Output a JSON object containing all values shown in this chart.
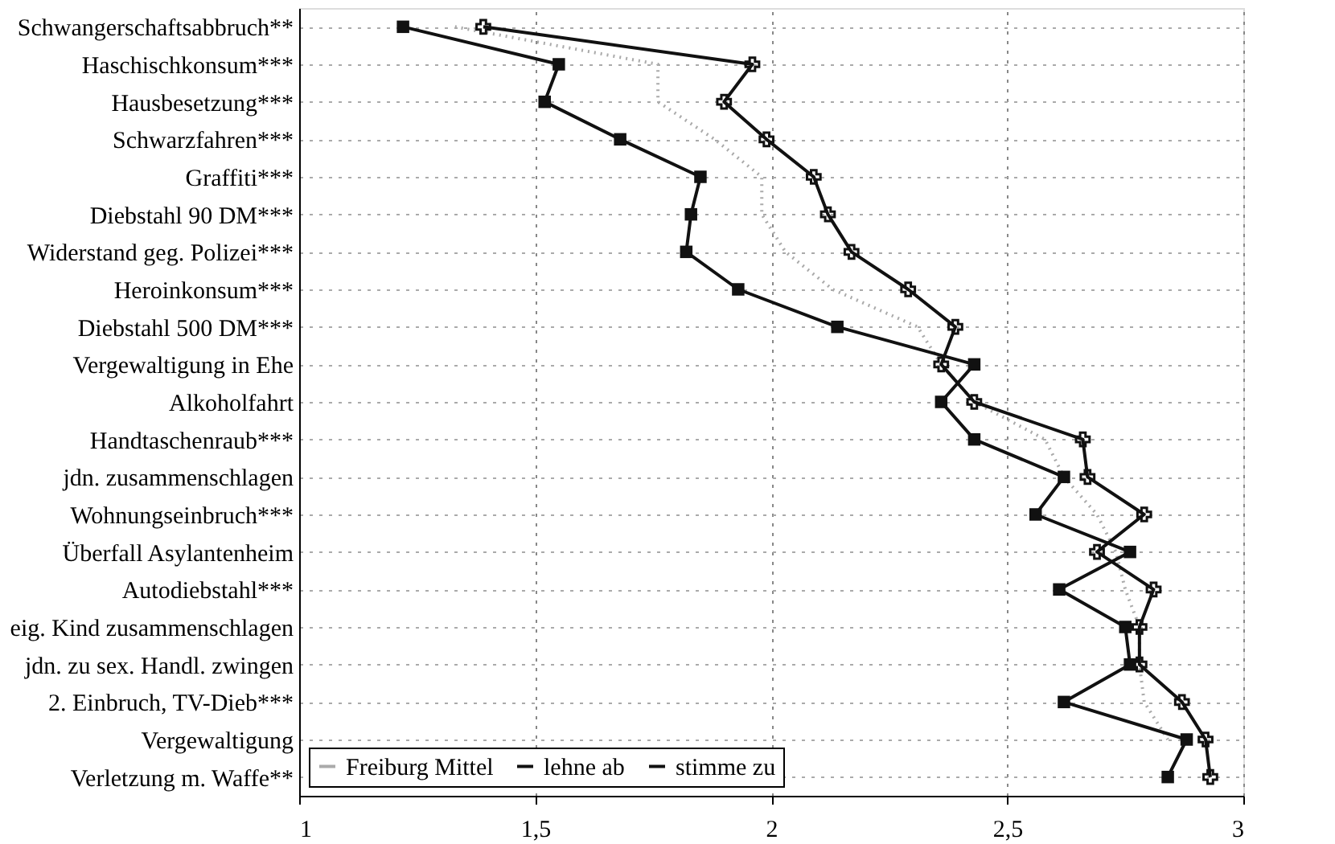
{
  "chart_data": {
    "type": "line",
    "orientation": "horizontal",
    "categories": [
      "Schwangerschaftsabbruch**",
      "Haschischkonsum***",
      "Hausbesetzung***",
      "Schwarzfahren***",
      "Graffiti***",
      "Diebstahl 90 DM***",
      "Widerstand geg. Polizei***",
      "Heroinkonsum***",
      "Diebstahl 500 DM***",
      "Vergewaltigung in Ehe",
      "Alkoholfahrt",
      "Handtaschenraub***",
      "jdn. zusammenschlagen",
      "Wohnungseinbruch***",
      "Überfall Asylantenheim",
      "Autodiebstahl***",
      "eig. Kind zusammenschlagen",
      "jdn. zu sex. Handl. zwingen",
      "2. Einbruch, TV-Dieb***",
      "Vergewaltigung",
      "Verletzung m. Waffe**"
    ],
    "series": [
      {
        "name": "Freiburg Mittel",
        "color": "#aaaaaa",
        "marker": "none",
        "line_style": "dotted",
        "values": [
          1.33,
          1.76,
          1.76,
          1.88,
          1.98,
          1.98,
          2.03,
          2.13,
          2.31,
          2.36,
          2.43,
          2.58,
          2.62,
          2.69,
          2.73,
          2.75,
          2.78,
          2.78,
          2.79,
          2.84,
          null
        ]
      },
      {
        "name": "lehne ab",
        "color": "#111111",
        "marker": "cross",
        "line_style": "solid",
        "values": [
          1.39,
          1.96,
          1.9,
          1.99,
          2.09,
          2.12,
          2.17,
          2.29,
          2.39,
          2.36,
          2.43,
          2.66,
          2.67,
          2.79,
          2.69,
          2.81,
          2.78,
          2.78,
          2.87,
          2.92,
          2.93
        ]
      },
      {
        "name": "stimme zu",
        "color": "#111111",
        "marker": "square",
        "line_style": "solid",
        "values": [
          1.22,
          1.55,
          1.52,
          1.68,
          1.85,
          1.83,
          1.82,
          1.93,
          2.14,
          2.43,
          2.36,
          2.43,
          2.62,
          2.56,
          2.76,
          2.61,
          2.75,
          2.76,
          2.62,
          2.88,
          2.84
        ]
      }
    ],
    "xlim": [
      1,
      3
    ],
    "xticks": [
      1,
      {
        "value": 1.5,
        "label": "1,5"
      },
      2,
      {
        "value": 2.5,
        "label": "2,5"
      },
      3
    ],
    "grid": true,
    "legend": "bottom left"
  }
}
